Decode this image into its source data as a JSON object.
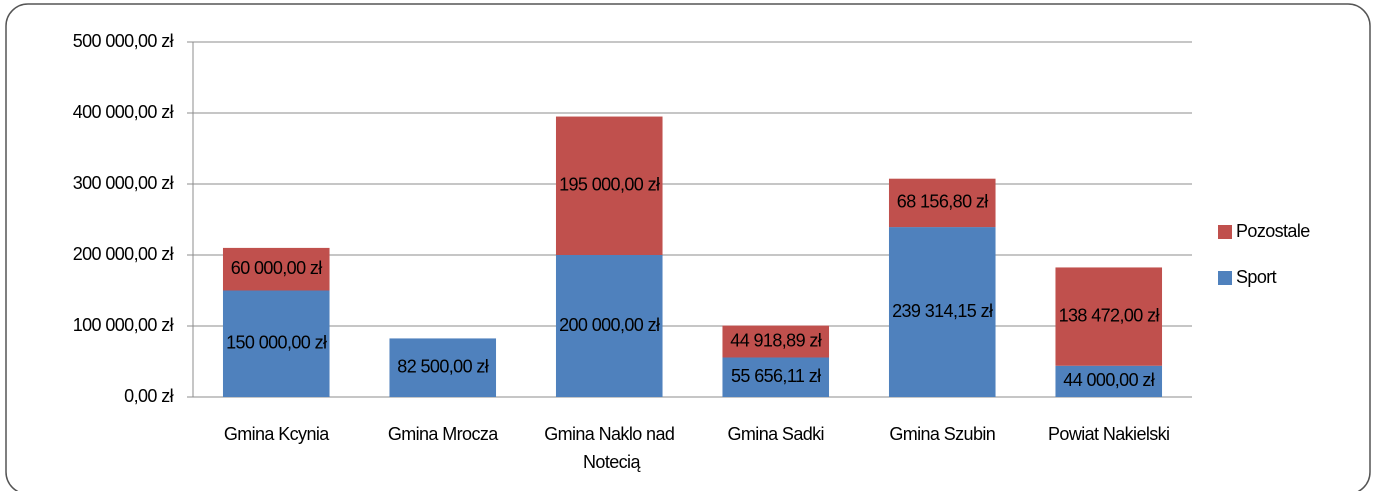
{
  "chart_data": {
    "type": "stacked_bar",
    "categories": [
      "Gmina Kcynia",
      "Gmina Mrocza",
      "Gmina Naklo nad Notecią",
      "Gmina Sadki",
      "Gmina Szubin",
      "Powiat Nakielski"
    ],
    "series": [
      {
        "name": "Sport",
        "color": "#4f81bd",
        "values": [
          150000,
          82500,
          200000,
          55656.11,
          239314.15,
          44000
        ],
        "value_labels": [
          "150 000,00 zł",
          "82 500,00 zł",
          "200 000,00 zł",
          "55 656,11 zł",
          "239 314,15 zł",
          "44 000,00  zł"
        ]
      },
      {
        "name": "Pozostale",
        "color": "#c0504d",
        "values": [
          60000,
          null,
          195000,
          44918.89,
          68156.8,
          138472
        ],
        "value_labels": [
          "60 000,00 zł",
          null,
          "195 000,00 zł",
          "44 918,89 zł",
          "68 156,80 zł",
          "138 472,00 zł"
        ]
      }
    ],
    "ylim": [
      0,
      500000
    ],
    "yticks": [
      {
        "value": 0,
        "label": "0,00 zł"
      },
      {
        "value": 100000,
        "label": "100 000,00 zł"
      },
      {
        "value": 200000,
        "label": "200 000,00 zł"
      },
      {
        "value": 300000,
        "label": "300 000,00 zł"
      },
      {
        "value": 400000,
        "label": "400 000,00 zł"
      },
      {
        "value": 500000,
        "label": "500 000,00 zł"
      }
    ],
    "grid": true,
    "legend": "right"
  }
}
